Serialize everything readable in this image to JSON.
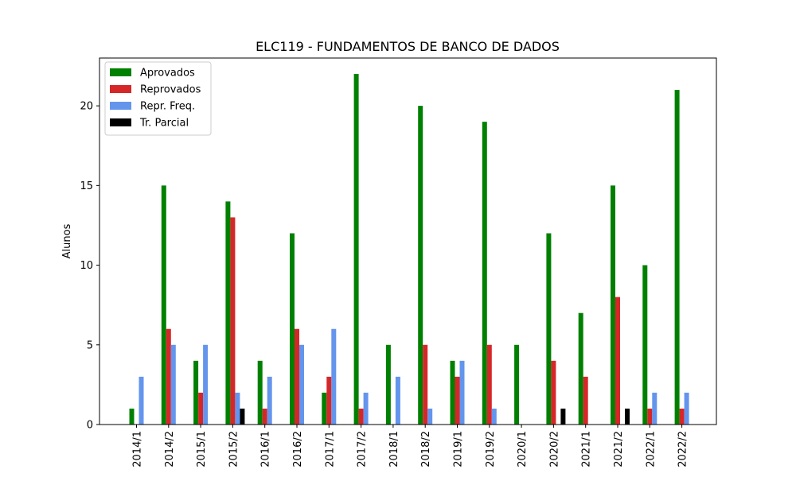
{
  "chart_data": {
    "type": "bar",
    "title": "ELC119 - FUNDAMENTOS DE BANCO DE DADOS",
    "xlabel": "",
    "ylabel": "Alunos",
    "ylim": [
      0,
      23
    ],
    "yticks": [
      0,
      5,
      10,
      15,
      20
    ],
    "grid": false,
    "legend_position": "top-left",
    "categories": [
      "2014/1",
      "2014/2",
      "2015/1",
      "2015/2",
      "2016/1",
      "2016/2",
      "2017/1",
      "2017/2",
      "2018/1",
      "2018/2",
      "2019/1",
      "2019/2",
      "2020/1",
      "2020/2",
      "2021/1",
      "2021/2",
      "2022/1",
      "2022/2"
    ],
    "series": [
      {
        "name": "Aprovados",
        "color": "#008000",
        "values": [
          1,
          15,
          4,
          14,
          4,
          12,
          2,
          22,
          5,
          20,
          4,
          19,
          5,
          12,
          7,
          15,
          10,
          21
        ]
      },
      {
        "name": "Reprovados",
        "color": "#d62728",
        "values": [
          0,
          6,
          2,
          13,
          1,
          6,
          3,
          1,
          0,
          5,
          3,
          5,
          0,
          4,
          3,
          8,
          1,
          1
        ]
      },
      {
        "name": "Repr. Freq.",
        "color": "#6495ed",
        "values": [
          3,
          5,
          5,
          2,
          3,
          5,
          6,
          2,
          3,
          1,
          4,
          1,
          0,
          0,
          0,
          0,
          2,
          2
        ]
      },
      {
        "name": "Tr. Parcial",
        "color": "#000000",
        "values": [
          0,
          0,
          0,
          1,
          0,
          0,
          0,
          0,
          0,
          0,
          0,
          0,
          0,
          1,
          0,
          1,
          0,
          0
        ]
      }
    ]
  }
}
